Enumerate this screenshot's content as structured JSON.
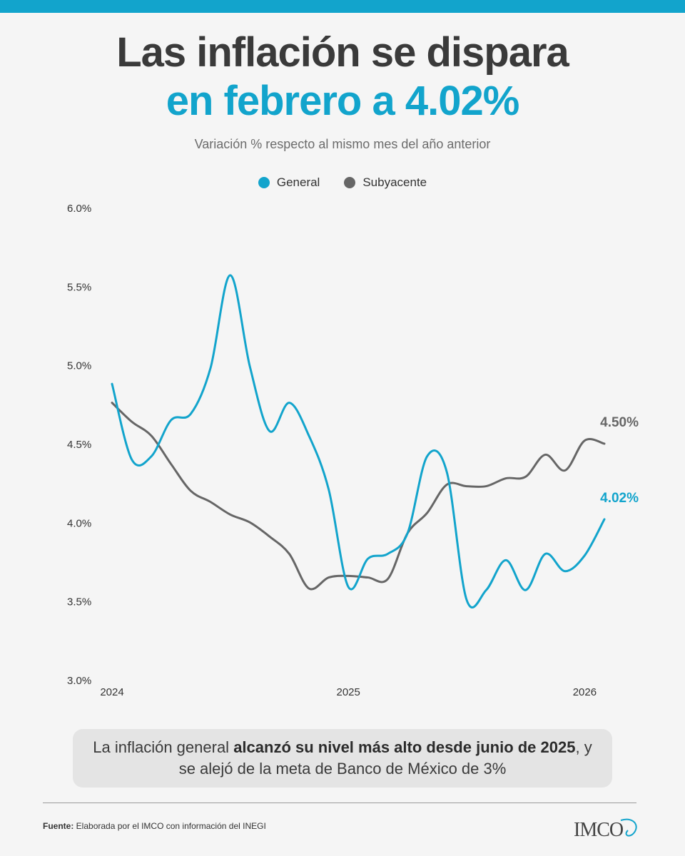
{
  "header": {
    "title_line1": "Las inflación se dispara",
    "title_line2": "en febrero a 4.02%",
    "subtitle": "Variación % respecto al mismo mes del año anterior"
  },
  "legend": [
    {
      "label": "General",
      "color": "#12a4cc"
    },
    {
      "label": "Subyacente",
      "color": "#666666"
    }
  ],
  "chart_data": {
    "type": "line",
    "title": "Las inflación se dispara en febrero a 4.02%",
    "subtitle": "Variación % respecto al mismo mes del año anterior",
    "xlabel": "",
    "ylabel": "",
    "ylim": [
      3.0,
      6.0
    ],
    "yticks": [
      "3.0%",
      "3.5%",
      "4.0%",
      "4.5%",
      "5.0%",
      "5.5%",
      "6.0%"
    ],
    "xticks": [
      "2024",
      "2025",
      "2026"
    ],
    "x": [
      "2024-01",
      "2024-02",
      "2024-03",
      "2024-04",
      "2024-05",
      "2024-06",
      "2024-07",
      "2024-08",
      "2024-09",
      "2024-10",
      "2024-11",
      "2024-12",
      "2025-01",
      "2025-02",
      "2025-03",
      "2025-04",
      "2025-05",
      "2025-06",
      "2025-07",
      "2025-08",
      "2025-09",
      "2025-10",
      "2025-11",
      "2025-12",
      "2026-01",
      "2026-02"
    ],
    "grid": false,
    "legend_position": "top-center",
    "series": [
      {
        "name": "General",
        "color": "#12a4cc",
        "values": [
          4.88,
          4.4,
          4.42,
          4.65,
          4.69,
          4.98,
          5.57,
          4.99,
          4.58,
          4.76,
          4.55,
          4.21,
          3.59,
          3.77,
          3.8,
          3.93,
          4.42,
          4.32,
          3.51,
          3.57,
          3.76,
          3.57,
          3.8,
          3.69,
          3.79,
          4.02
        ],
        "end_label": "4.02%"
      },
      {
        "name": "Subyacente",
        "color": "#666666",
        "values": [
          4.76,
          4.64,
          4.55,
          4.37,
          4.2,
          4.13,
          4.05,
          4.0,
          3.91,
          3.8,
          3.58,
          3.65,
          3.66,
          3.65,
          3.64,
          3.93,
          4.06,
          4.24,
          4.23,
          4.23,
          4.28,
          4.29,
          4.43,
          4.33,
          4.52,
          4.5
        ],
        "end_label": "4.50%"
      }
    ]
  },
  "callout": {
    "text_before": "La inflación general ",
    "text_bold": "alcanzó su nivel más alto desde junio de 2025",
    "text_after": ", y se alejó de la meta de Banco de México de 3%"
  },
  "footer": {
    "source_label": "Fuente:",
    "source_text": " Elaborada por el IMCO con información del INEGI",
    "logo_text": "IMCO"
  }
}
